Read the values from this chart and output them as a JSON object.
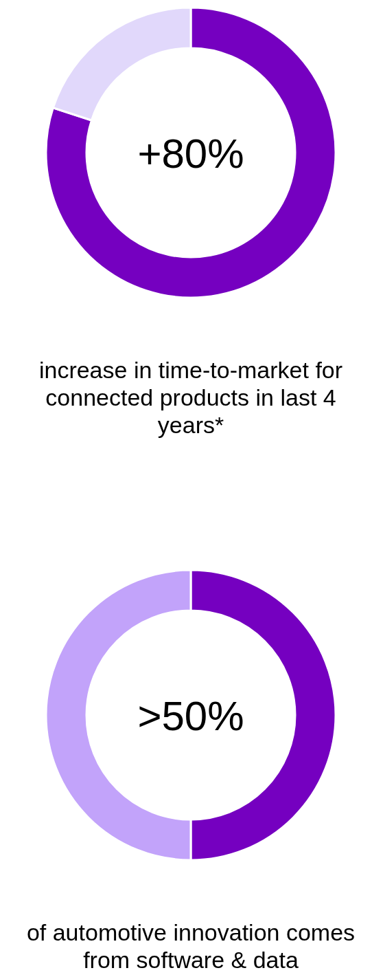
{
  "chart_data": [
    {
      "type": "donut",
      "title": "+80%",
      "categories": [
        null,
        null
      ],
      "values": [
        80,
        20
      ],
      "colors": [
        "#7500c0",
        "#e1d8fb"
      ],
      "annotations": [
        "increase in time-to-market for connected products in last 4 years*"
      ]
    },
    {
      "type": "donut",
      "title": ">50%",
      "categories": [
        null,
        null
      ],
      "values": [
        50,
        50
      ],
      "colors": [
        "#7500c0",
        "#c2a3fa"
      ],
      "annotations": [
        "of automotive innovation comes from software & data"
      ]
    }
  ]
}
